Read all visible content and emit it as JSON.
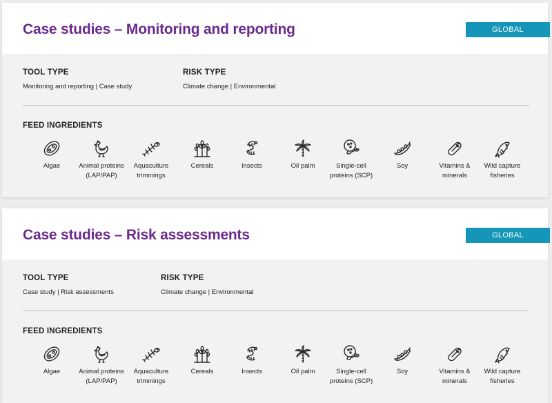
{
  "cards": [
    {
      "title": "Case studies – Monitoring and reporting",
      "badge": "GLOBAL",
      "tool_type_heading": "TOOL TYPE",
      "tool_type_value": "Monitoring and reporting | Case study",
      "risk_type_heading": "RISK TYPE",
      "risk_type_value": "Climate change | Environmental",
      "feed_heading": "FEED INGREDIENTS"
    },
    {
      "title": "Case studies – Risk assessments",
      "badge": "GLOBAL",
      "tool_type_heading": "TOOL TYPE",
      "tool_type_value": "Case study | Risk assessments",
      "risk_type_heading": "RISK TYPE",
      "risk_type_value": "Climate change | Environmental",
      "feed_heading": "FEED INGREDIENTS"
    }
  ],
  "ingredients": [
    {
      "label": "Algae",
      "icon": "algae-icon"
    },
    {
      "label": "Animal proteins\n(LAP/PAP)",
      "icon": "chicken-icon"
    },
    {
      "label": "Aquaculture\ntrimmings",
      "icon": "fish-bone-icon"
    },
    {
      "label": "Cereals",
      "icon": "wheat-icon"
    },
    {
      "label": "Insects",
      "icon": "larva-icon"
    },
    {
      "label": "Oil palm",
      "icon": "palm-tree-icon"
    },
    {
      "label": "Single-cell\nproteins (SCP)",
      "icon": "cell-icon"
    },
    {
      "label": "Soy",
      "icon": "soybean-pod-icon"
    },
    {
      "label": "Vitamins &\nminerals",
      "icon": "capsule-icon"
    },
    {
      "label": "Wild capture\nfisheries",
      "icon": "fish-icon"
    }
  ],
  "colors": {
    "title": "#6b2a8c",
    "badge": "#1596b8"
  }
}
